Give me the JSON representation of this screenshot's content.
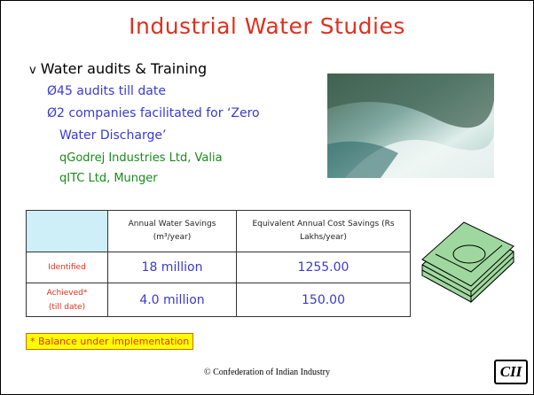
{
  "header": {
    "title": "Industrial Water Studies"
  },
  "bullets": [
    {
      "marker": "v",
      "text": "Water audits & Training"
    },
    {
      "marker": "Ø",
      "text": "45 audits till date"
    },
    {
      "marker": "Ø",
      "text": "2 companies facilitated for ‘Zero"
    },
    {
      "marker": "",
      "text": "Water Discharge’"
    },
    {
      "marker": "q",
      "text": "Godrej Industries Ltd, Valia"
    },
    {
      "marker": "q",
      "text": "ITC Ltd, Munger"
    }
  ],
  "table": {
    "header": [
      "Annual Water Savings",
      "(m³/year)",
      "Equivalent Annual Cost Savings (Rs",
      "Lakhs/year)"
    ],
    "rows": [
      [
        "Identified",
        "",
        "18 million",
        "1255.00"
      ],
      [
        "Achieved*",
        "(till date)",
        "4.0 million",
        "150.00"
      ]
    ]
  },
  "note": "* Balance under implementation",
  "footer": "© Confederation of Indian Industry",
  "logo": "CII"
}
